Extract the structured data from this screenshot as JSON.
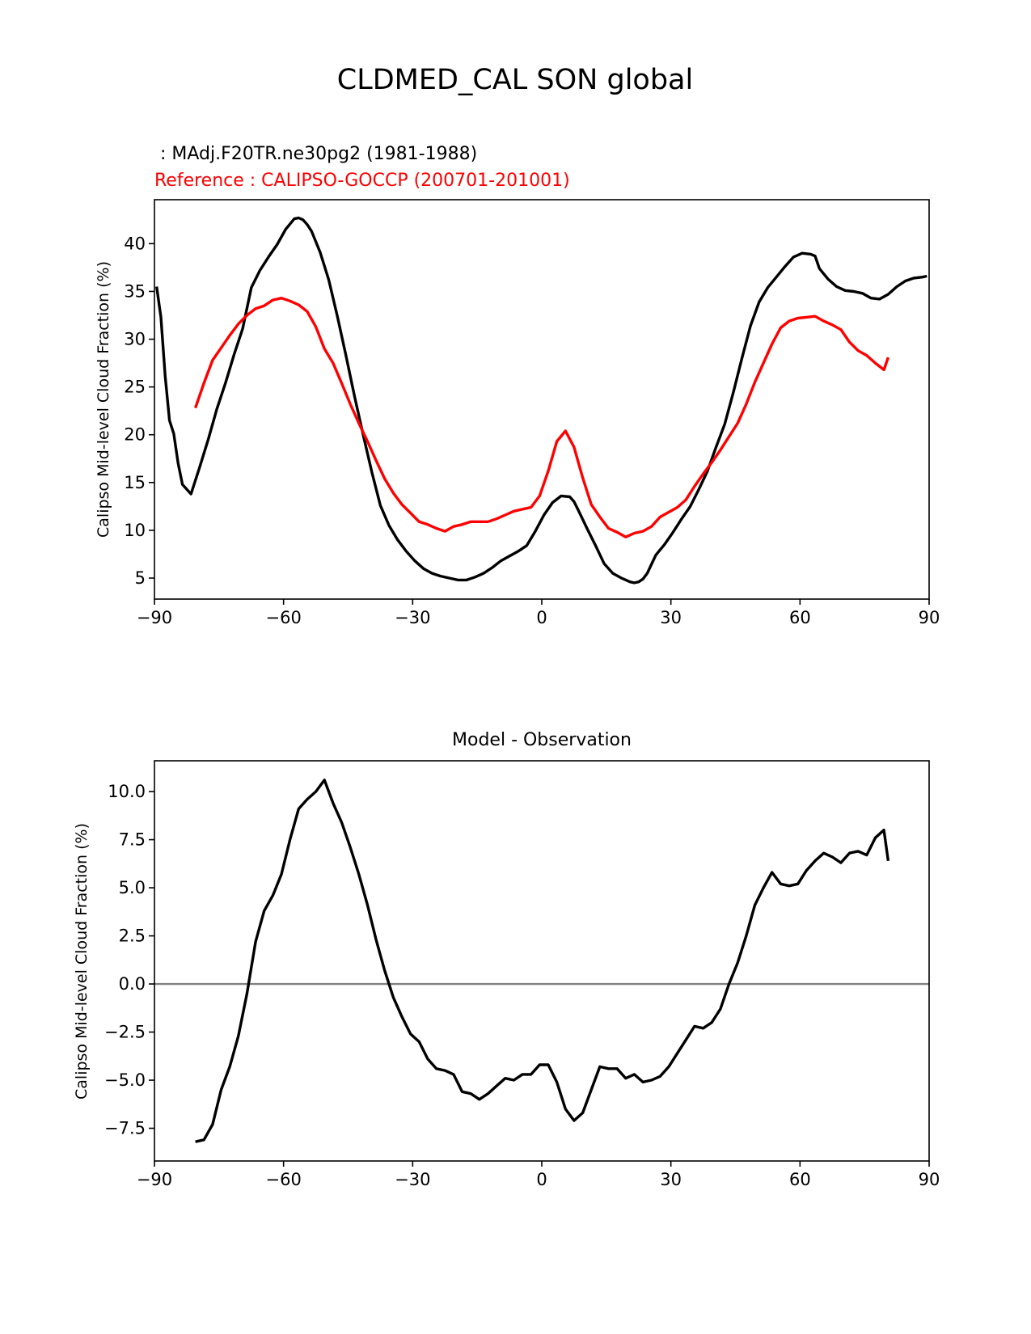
{
  "figure": {
    "title": "CLDMED_CAL SON global"
  },
  "chart_data": [
    {
      "type": "line",
      "test_label": " : MAdj.F20TR.ne30pg2 (1981-1988)",
      "ref_label": "Reference : CALIPSO-GOCCP (200701-201001)",
      "ylabel": "Calipso Mid-level Cloud Fraction (%)",
      "xlabel": "",
      "xlim": [
        -90,
        90
      ],
      "ylim": [
        2.8,
        44.6
      ],
      "xticks": [
        -90,
        -60,
        -30,
        0,
        30,
        60,
        90
      ],
      "xtick_labels": [
        "−90",
        "−60",
        "−30",
        "0",
        "30",
        "60",
        "90"
      ],
      "yticks": [
        5,
        10,
        15,
        20,
        25,
        30,
        35,
        40
      ],
      "ytick_labels": [
        "5",
        "10",
        "15",
        "20",
        "25",
        "30",
        "35",
        "40"
      ],
      "series": [
        {
          "name": "MAdj.F20TR.ne30pg2 (1981-1988)",
          "color": "#000000",
          "x": [
            -89.5,
            -88.5,
            -87.5,
            -86.5,
            -85.5,
            -84.5,
            -83.5,
            -81.5,
            -79.5,
            -77.5,
            -75.5,
            -73.5,
            -71.5,
            -69.5,
            -67.5,
            -65.5,
            -63.5,
            -61.5,
            -59.5,
            -57.5,
            -56.5,
            -55.5,
            -54.5,
            -53.5,
            -51.5,
            -49.5,
            -47.5,
            -45.5,
            -43.5,
            -41.5,
            -39.5,
            -37.5,
            -35.5,
            -33.5,
            -31.5,
            -29.5,
            -27.5,
            -25.5,
            -23.5,
            -21.5,
            -19.5,
            -17.5,
            -15.5,
            -13.5,
            -11.5,
            -9.5,
            -7.5,
            -5.5,
            -3.5,
            -1.5,
            0.5,
            2.5,
            4.5,
            6.5,
            7.5,
            8.5,
            10.5,
            12.5,
            14.5,
            16.5,
            18.5,
            20.5,
            21.5,
            22.5,
            23.5,
            24.5,
            26.5,
            28.5,
            30.5,
            32.5,
            34.5,
            36.5,
            38.5,
            40.5,
            42.5,
            44.5,
            46.5,
            48.5,
            50.5,
            52.5,
            54.5,
            56.5,
            58.5,
            60.5,
            62.5,
            63.5,
            64.5,
            66.5,
            68.5,
            70.5,
            72.5,
            74.5,
            76.5,
            78.5,
            80.5,
            82.5,
            84.5,
            86.5,
            88.5,
            89.5
          ],
          "y": [
            35.5,
            32.3,
            26.1,
            21.5,
            20.1,
            17.0,
            14.8,
            13.8,
            16.6,
            19.5,
            22.7,
            25.4,
            28.4,
            31.1,
            35.4,
            37.2,
            38.6,
            39.9,
            41.5,
            42.6,
            42.7,
            42.5,
            42.0,
            41.3,
            39.1,
            36.2,
            32.4,
            28.3,
            24.0,
            20.0,
            16.1,
            12.6,
            10.5,
            9.0,
            7.8,
            6.8,
            6.0,
            5.5,
            5.2,
            5.0,
            4.8,
            4.8,
            5.1,
            5.5,
            6.1,
            6.8,
            7.3,
            7.8,
            8.4,
            9.9,
            11.6,
            12.9,
            13.6,
            13.5,
            13.0,
            12.1,
            10.2,
            8.4,
            6.5,
            5.5,
            5.0,
            4.6,
            4.5,
            4.6,
            4.9,
            5.5,
            7.4,
            8.5,
            9.8,
            11.2,
            12.5,
            14.3,
            16.2,
            18.7,
            21.1,
            24.4,
            28.0,
            31.4,
            33.9,
            35.4,
            36.5,
            37.6,
            38.6,
            39.0,
            38.9,
            38.7,
            37.4,
            36.3,
            35.5,
            35.1,
            35.0,
            34.8,
            34.3,
            34.2,
            34.7,
            35.5,
            36.1,
            36.4,
            36.5,
            36.6
          ]
        },
        {
          "name": "CALIPSO-GOCCP (200701-201001)",
          "color": "#ff0000",
          "x": [
            -80.5,
            -78.5,
            -76.5,
            -74.5,
            -72.5,
            -70.5,
            -68.5,
            -66.5,
            -64.5,
            -62.5,
            -60.5,
            -58.5,
            -56.5,
            -54.5,
            -52.5,
            -50.5,
            -48.5,
            -46.5,
            -44.5,
            -42.5,
            -40.5,
            -38.5,
            -36.5,
            -34.5,
            -32.5,
            -30.5,
            -28.5,
            -26.5,
            -24.5,
            -22.5,
            -20.5,
            -18.5,
            -16.5,
            -14.5,
            -12.5,
            -10.5,
            -8.5,
            -6.5,
            -4.5,
            -2.5,
            -0.5,
            1.5,
            3.5,
            5.5,
            7.5,
            9.5,
            11.5,
            13.5,
            15.5,
            17.5,
            19.5,
            21.5,
            23.5,
            25.5,
            27.5,
            29.5,
            31.5,
            33.5,
            35.5,
            37.5,
            39.5,
            41.5,
            43.5,
            45.5,
            47.5,
            49.5,
            51.5,
            53.5,
            55.5,
            57.5,
            59.5,
            61.5,
            63.5,
            65.5,
            67.5,
            69.5,
            71.5,
            73.5,
            75.5,
            77.5,
            79.5,
            80.5
          ],
          "y": [
            22.8,
            25.4,
            27.8,
            29.1,
            30.4,
            31.6,
            32.5,
            33.2,
            33.5,
            34.1,
            34.3,
            34.0,
            33.6,
            32.9,
            31.3,
            29.0,
            27.5,
            25.4,
            23.2,
            21.2,
            19.3,
            17.3,
            15.4,
            13.9,
            12.7,
            11.8,
            10.9,
            10.6,
            10.2,
            9.9,
            10.4,
            10.6,
            10.9,
            10.9,
            10.9,
            11.2,
            11.6,
            12.0,
            12.2,
            12.4,
            13.6,
            16.2,
            19.3,
            20.4,
            18.7,
            15.5,
            12.7,
            11.4,
            10.2,
            9.8,
            9.3,
            9.7,
            9.9,
            10.4,
            11.4,
            11.9,
            12.4,
            13.2,
            14.6,
            15.9,
            17.1,
            18.4,
            19.8,
            21.2,
            23.2,
            25.5,
            27.5,
            29.5,
            31.2,
            31.9,
            32.2,
            32.3,
            32.4,
            31.9,
            31.5,
            31.0,
            29.7,
            28.8,
            28.3,
            27.5,
            26.8,
            28.1
          ]
        }
      ]
    },
    {
      "type": "line",
      "title": "Model - Observation",
      "ylabel": "Calipso Mid-level Cloud Fraction (%)",
      "xlabel": "",
      "xlim": [
        -90,
        90
      ],
      "ylim": [
        -9.2,
        11.6
      ],
      "xticks": [
        -90,
        -60,
        -30,
        0,
        30,
        60,
        90
      ],
      "xtick_labels": [
        "−90",
        "−60",
        "−30",
        "0",
        "30",
        "60",
        "90"
      ],
      "yticks": [
        -7.5,
        -5.0,
        -2.5,
        0.0,
        2.5,
        5.0,
        7.5,
        10.0
      ],
      "ytick_labels": [
        "−7.5",
        "−5.0",
        "−2.5",
        "0.0",
        "2.5",
        "5.0",
        "7.5",
        "10.0"
      ],
      "zero_line_color": "#808080",
      "series": [
        {
          "name": "Model - Observation",
          "color": "#000000",
          "x": [
            -80.5,
            -78.5,
            -76.5,
            -74.5,
            -72.5,
            -70.5,
            -68.5,
            -66.5,
            -64.5,
            -62.5,
            -60.5,
            -58.5,
            -56.5,
            -54.5,
            -52.5,
            -50.5,
            -48.5,
            -46.5,
            -44.5,
            -42.5,
            -40.5,
            -38.5,
            -36.5,
            -34.5,
            -32.5,
            -30.5,
            -28.5,
            -26.5,
            -24.5,
            -22.5,
            -20.5,
            -18.5,
            -16.5,
            -14.5,
            -12.5,
            -10.5,
            -8.5,
            -6.5,
            -4.5,
            -2.5,
            -0.5,
            1.5,
            3.5,
            5.5,
            7.5,
            9.5,
            11.5,
            13.5,
            15.5,
            17.5,
            19.5,
            21.5,
            23.5,
            25.5,
            27.5,
            29.5,
            31.5,
            33.5,
            35.5,
            37.5,
            39.5,
            41.5,
            43.5,
            45.5,
            47.5,
            49.5,
            51.5,
            53.5,
            55.5,
            57.5,
            59.5,
            61.5,
            63.5,
            65.5,
            67.5,
            69.5,
            71.5,
            73.5,
            75.5,
            77.5,
            79.5,
            80.5
          ],
          "y": [
            -8.2,
            -8.1,
            -7.3,
            -5.5,
            -4.3,
            -2.7,
            -0.5,
            2.2,
            3.8,
            4.6,
            5.7,
            7.5,
            9.1,
            9.6,
            10.0,
            10.6,
            9.4,
            8.4,
            7.1,
            5.7,
            4.1,
            2.3,
            0.7,
            -0.7,
            -1.7,
            -2.6,
            -3.0,
            -3.9,
            -4.4,
            -4.5,
            -4.7,
            -5.6,
            -5.7,
            -6.0,
            -5.7,
            -5.3,
            -4.9,
            -5.0,
            -4.7,
            -4.7,
            -4.2,
            -4.2,
            -5.1,
            -6.5,
            -7.1,
            -6.7,
            -5.5,
            -4.3,
            -4.4,
            -4.4,
            -4.9,
            -4.7,
            -5.1,
            -5.0,
            -4.8,
            -4.3,
            -3.6,
            -2.9,
            -2.2,
            -2.3,
            -2.0,
            -1.3,
            0.0,
            1.1,
            2.5,
            4.1,
            5.0,
            5.8,
            5.2,
            5.1,
            5.2,
            5.9,
            6.4,
            6.8,
            6.6,
            6.3,
            6.8,
            6.9,
            6.7,
            7.6,
            8.0,
            6.4
          ]
        }
      ]
    }
  ]
}
